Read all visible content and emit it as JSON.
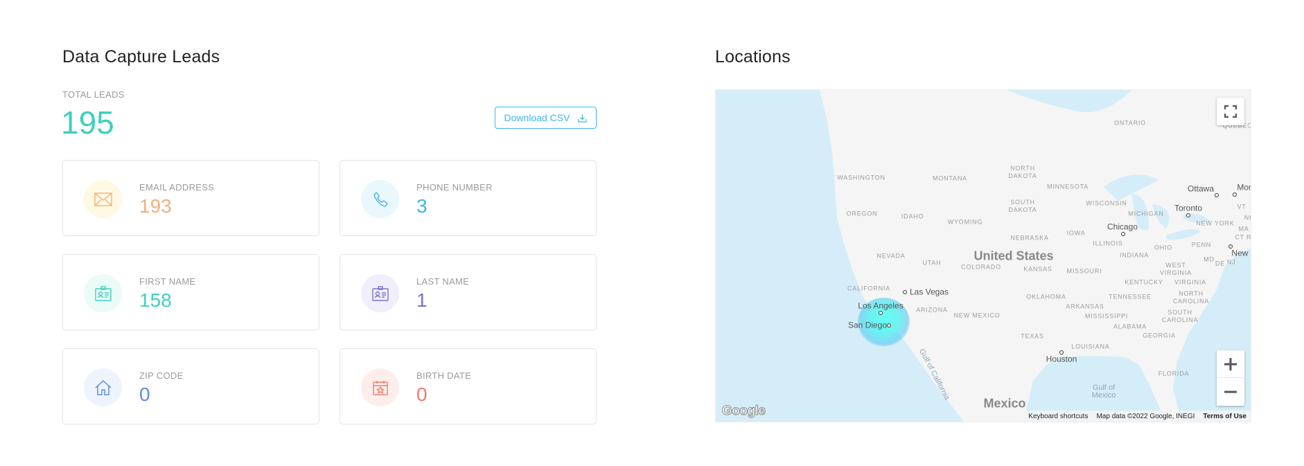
{
  "leads": {
    "title": "Data Capture Leads",
    "total_label": "TOTAL LEADS",
    "total_value": "195",
    "download_label": "Download CSV",
    "cards": [
      {
        "label": "EMAIL ADDRESS",
        "value": "193",
        "icon": "envelope-icon",
        "color": "#f0b27a",
        "bg": "#fff9e3"
      },
      {
        "label": "PHONE NUMBER",
        "value": "3",
        "icon": "phone-icon",
        "color": "#3bb5ec",
        "bg": "#eaf8fd"
      },
      {
        "label": "FIRST NAME",
        "value": "158",
        "icon": "id-card-icon",
        "color": "#3fcfbf",
        "bg": "#eafbf8"
      },
      {
        "label": "LAST NAME",
        "value": "1",
        "icon": "id-card-icon",
        "color": "#7a74c8",
        "bg": "#f1effb"
      },
      {
        "label": "ZIP CODE",
        "value": "0",
        "icon": "home-icon",
        "color": "#5b8ee6",
        "bg": "#eef4fd"
      },
      {
        "label": "BIRTH DATE",
        "value": "0",
        "icon": "calendar-star-icon",
        "color": "#ee7b6c",
        "bg": "#fdeeec"
      }
    ]
  },
  "locations": {
    "title": "Locations",
    "labels": {
      "regions": [
        "WASHINGTON",
        "MONTANA",
        "NORTH\nDAKOTA",
        "MINNESOTA",
        "ONTARIO",
        "QUEBEC",
        "SOUTH\nDAKOTA",
        "WISCONSIN",
        "MICHIGAN",
        "VT",
        "NH",
        "NEW YORK",
        "MA",
        "CT RI",
        "OREGON",
        "IDAHO",
        "WYOMING",
        "NEBRASKA",
        "IOWA",
        "ILLINOIS",
        "OHIO",
        "PENN",
        "NEVADA",
        "UTAH",
        "COLORADO",
        "KANSAS",
        "MISSOURI",
        "INDIANA",
        "MD",
        "DE",
        "NJ",
        "WEST\nVIRGINIA",
        "KENTUCKY",
        "VIRGINIA",
        "CALIFORNIA",
        "OKLAHOMA",
        "TENNESSEE",
        "NORTH\nCAROLINA",
        "ARIZONA",
        "NEW MEXICO",
        "ARKANSAS",
        "MISSISSIPPI",
        "SOUTH\nCAROLINA",
        "ALABAMA",
        "GEORGIA",
        "TEXAS",
        "LOUISIANA",
        "FLORIDA"
      ],
      "cities": [
        "Ottawa",
        "Mon",
        "Toronto",
        "Chicago",
        "New Y",
        "Las Vegas",
        "Los Angeles",
        "San Diego",
        "Houston"
      ],
      "countries": [
        "United States",
        "Mexico"
      ],
      "water": [
        "Gulf of\nMexico",
        "Gulf of California"
      ]
    },
    "footer": {
      "keyboard": "Keyboard shortcuts",
      "map_data": "Map data ©2022 Google, INEGI",
      "terms": "Terms of Use"
    },
    "logo": "Google",
    "heatmap_color": "#5afff0",
    "controls": [
      "fullscreen-icon",
      "zoom-in-icon",
      "zoom-out-icon"
    ]
  }
}
